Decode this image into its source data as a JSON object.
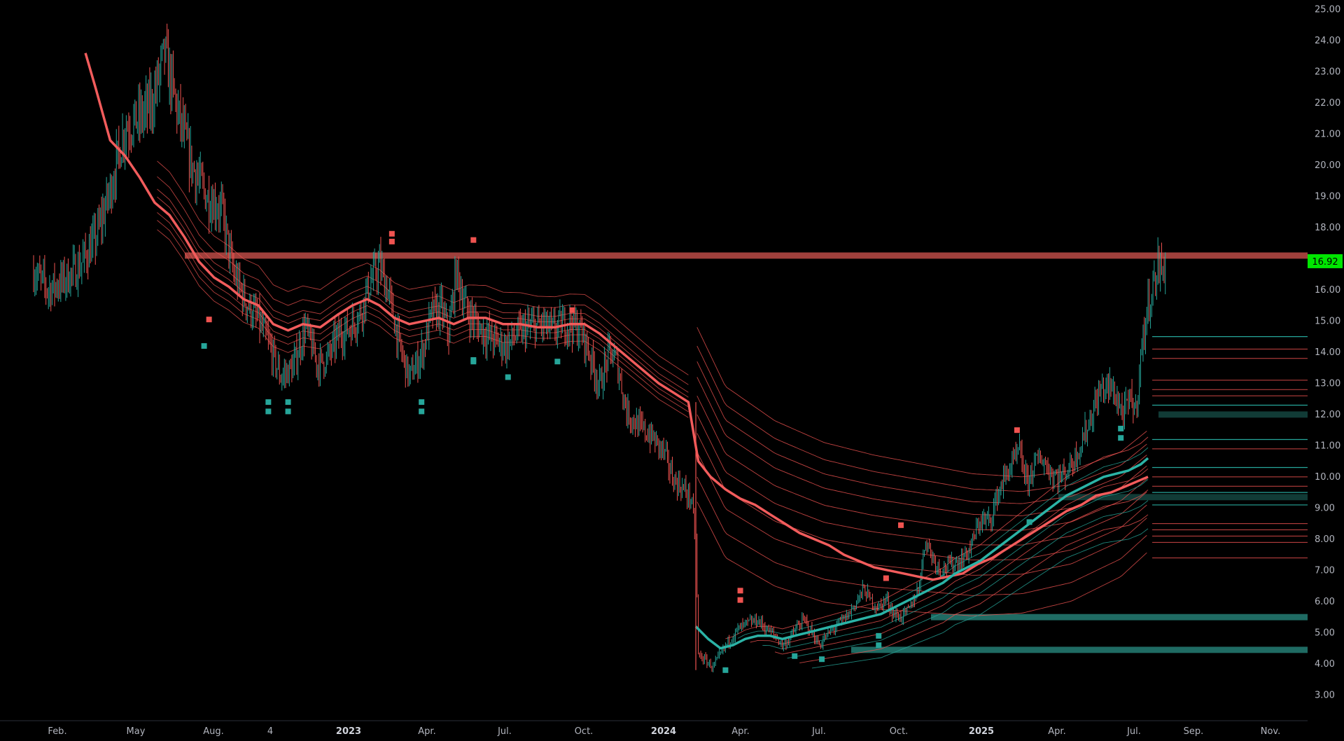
{
  "chart_data": {
    "type": "candlestick",
    "x_tick_labels": [
      "Feb.",
      "May",
      "Aug.",
      "4",
      "2023",
      "Apr.",
      "Jul.",
      "Oct.",
      "2024",
      "Apr.",
      "Jul.",
      "Oct.",
      "2025",
      "Apr.",
      "Jul.",
      "Sep.",
      "Nov."
    ],
    "x_tick_bold": [
      false,
      false,
      false,
      false,
      true,
      false,
      false,
      false,
      true,
      false,
      false,
      false,
      true,
      false,
      false,
      false,
      false
    ],
    "y_ticks": [
      3,
      4,
      5,
      6,
      7,
      8,
      9,
      10,
      11,
      12,
      13,
      14,
      15,
      16,
      17,
      18,
      19,
      20,
      21,
      22,
      23,
      24,
      25
    ],
    "y_tick_labels": [
      "3.00",
      "4.00",
      "5.00",
      "6.00",
      "7.00",
      "8.00",
      "9.00",
      "10.00",
      "11.00",
      "12.00",
      "13.00",
      "14.00",
      "15.00",
      "16.00",
      "17.00",
      "18.00",
      "19.00",
      "20.00",
      "21.00",
      "22.00",
      "23.00",
      "24.00",
      "25.00"
    ],
    "ylim": [
      2.2,
      25.3
    ],
    "last_price": 16.92,
    "last_price_label": "16.92",
    "colors": {
      "up": "#26a69a",
      "down": "#ef5350",
      "background": "#000000",
      "last_price_badge": "#00e600",
      "resistance_zone": "#a0403c",
      "support_zone": "#1f6b63"
    },
    "price_path": [
      [
        0,
        16.6
      ],
      [
        12,
        16.0
      ],
      [
        24,
        16.3
      ],
      [
        36,
        16.7
      ],
      [
        50,
        17.6
      ],
      [
        62,
        19.2
      ],
      [
        74,
        21.2
      ],
      [
        86,
        21.5
      ],
      [
        96,
        22.0
      ],
      [
        106,
        23.6
      ],
      [
        116,
        21.8
      ],
      [
        128,
        20.0
      ],
      [
        140,
        19.0
      ],
      [
        152,
        18.6
      ],
      [
        162,
        16.5
      ],
      [
        172,
        15.6
      ],
      [
        182,
        15.0
      ],
      [
        190,
        14.3
      ],
      [
        200,
        13.2
      ],
      [
        210,
        13.5
      ],
      [
        220,
        14.8
      ],
      [
        230,
        13.6
      ],
      [
        238,
        13.8
      ],
      [
        246,
        14.5
      ],
      [
        256,
        14.8
      ],
      [
        264,
        15.2
      ],
      [
        272,
        16.2
      ],
      [
        280,
        16.8
      ],
      [
        288,
        15.8
      ],
      [
        296,
        14.2
      ],
      [
        304,
        13.2
      ],
      [
        310,
        13.6
      ],
      [
        316,
        14.2
      ],
      [
        322,
        15.2
      ],
      [
        330,
        15.4
      ],
      [
        336,
        14.6
      ],
      [
        342,
        16.6
      ],
      [
        350,
        15.4
      ],
      [
        360,
        14.8
      ],
      [
        372,
        14.4
      ],
      [
        382,
        14.2
      ],
      [
        392,
        14.6
      ],
      [
        402,
        14.8
      ],
      [
        412,
        14.9
      ],
      [
        420,
        14.7
      ],
      [
        428,
        14.9
      ],
      [
        436,
        14.9
      ],
      [
        444,
        14.6
      ],
      [
        452,
        13.7
      ],
      [
        458,
        12.9
      ],
      [
        466,
        14.0
      ],
      [
        472,
        13.7
      ],
      [
        480,
        12.1
      ],
      [
        490,
        11.6
      ],
      [
        500,
        11.3
      ],
      [
        510,
        10.8
      ],
      [
        518,
        9.9
      ],
      [
        526,
        9.6
      ],
      [
        532,
        9.3
      ],
      [
        536,
        8.0
      ],
      [
        538,
        4.3
      ],
      [
        544,
        4.1
      ],
      [
        550,
        3.9
      ],
      [
        556,
        4.3
      ],
      [
        562,
        4.7
      ],
      [
        570,
        5.1
      ],
      [
        578,
        5.3
      ],
      [
        586,
        5.4
      ],
      [
        594,
        5.1
      ],
      [
        600,
        4.9
      ],
      [
        606,
        4.6
      ],
      [
        612,
        4.8
      ],
      [
        618,
        5.2
      ],
      [
        624,
        5.4
      ],
      [
        630,
        5.0
      ],
      [
        636,
        4.6
      ],
      [
        644,
        5.0
      ],
      [
        652,
        5.3
      ],
      [
        660,
        5.6
      ],
      [
        666,
        6.0
      ],
      [
        672,
        6.4
      ],
      [
        678,
        6.0
      ],
      [
        684,
        5.8
      ],
      [
        690,
        6.1
      ],
      [
        696,
        5.6
      ],
      [
        702,
        5.5
      ],
      [
        708,
        5.7
      ],
      [
        716,
        6.4
      ],
      [
        722,
        8.0
      ],
      [
        728,
        7.4
      ],
      [
        734,
        7.0
      ],
      [
        742,
        7.2
      ],
      [
        750,
        7.3
      ],
      [
        758,
        7.7
      ],
      [
        766,
        8.6
      ],
      [
        774,
        8.6
      ],
      [
        780,
        9.4
      ],
      [
        786,
        10.0
      ],
      [
        792,
        10.4
      ],
      [
        798,
        10.8
      ],
      [
        804,
        9.8
      ],
      [
        810,
        10.4
      ],
      [
        816,
        10.6
      ],
      [
        824,
        10.1
      ],
      [
        832,
        10.0
      ],
      [
        840,
        10.4
      ],
      [
        846,
        10.9
      ],
      [
        852,
        11.5
      ],
      [
        858,
        12.2
      ],
      [
        864,
        12.8
      ],
      [
        870,
        12.9
      ],
      [
        876,
        12.6
      ],
      [
        882,
        12.0
      ],
      [
        888,
        12.5
      ],
      [
        892,
        12.1
      ],
      [
        896,
        13.8
      ],
      [
        900,
        15.0
      ],
      [
        904,
        15.9
      ],
      [
        908,
        16.3
      ],
      [
        910,
        16.8
      ],
      [
        913,
        16.6
      ],
      [
        916,
        16.9
      ]
    ],
    "vwap_main": [
      [
        42,
        23.6
      ],
      [
        50,
        22.5
      ],
      [
        62,
        20.8
      ],
      [
        74,
        20.3
      ],
      [
        86,
        19.6
      ],
      [
        98,
        18.8
      ],
      [
        110,
        18.4
      ],
      [
        122,
        17.7
      ],
      [
        134,
        16.9
      ],
      [
        146,
        16.4
      ],
      [
        158,
        16.1
      ],
      [
        170,
        15.7
      ],
      [
        182,
        15.5
      ],
      [
        194,
        14.9
      ],
      [
        206,
        14.7
      ],
      [
        218,
        14.9
      ],
      [
        232,
        14.8
      ],
      [
        246,
        15.2
      ],
      [
        258,
        15.5
      ],
      [
        270,
        15.7
      ],
      [
        280,
        15.5
      ],
      [
        292,
        15.1
      ],
      [
        304,
        14.9
      ],
      [
        316,
        15.0
      ],
      [
        328,
        15.1
      ],
      [
        340,
        14.9
      ],
      [
        352,
        15.1
      ],
      [
        366,
        15.1
      ],
      [
        380,
        14.9
      ],
      [
        394,
        14.9
      ],
      [
        408,
        14.8
      ],
      [
        422,
        14.8
      ],
      [
        434,
        14.9
      ],
      [
        446,
        14.9
      ],
      [
        458,
        14.6
      ],
      [
        470,
        14.2
      ],
      [
        482,
        13.8
      ],
      [
        494,
        13.4
      ],
      [
        506,
        13.0
      ],
      [
        518,
        12.7
      ],
      [
        530,
        12.4
      ],
      [
        538,
        10.5
      ],
      [
        548,
        10.0
      ],
      [
        560,
        9.6
      ],
      [
        572,
        9.3
      ],
      [
        584,
        9.1
      ],
      [
        596,
        8.8
      ],
      [
        608,
        8.5
      ],
      [
        620,
        8.2
      ],
      [
        632,
        8.0
      ],
      [
        644,
        7.8
      ],
      [
        656,
        7.5
      ],
      [
        668,
        7.3
      ],
      [
        680,
        7.1
      ],
      [
        692,
        7.0
      ],
      [
        704,
        6.9
      ],
      [
        716,
        6.8
      ],
      [
        728,
        6.7
      ],
      [
        740,
        6.8
      ],
      [
        752,
        6.9
      ],
      [
        764,
        7.2
      ],
      [
        776,
        7.4
      ],
      [
        788,
        7.7
      ],
      [
        800,
        8.0
      ],
      [
        812,
        8.3
      ],
      [
        824,
        8.6
      ],
      [
        836,
        8.9
      ],
      [
        848,
        9.1
      ],
      [
        860,
        9.4
      ],
      [
        872,
        9.5
      ],
      [
        884,
        9.7
      ],
      [
        896,
        9.9
      ],
      [
        902,
        10.0
      ]
    ],
    "vwap_support_main": [
      [
        536,
        5.2
      ],
      [
        546,
        4.8
      ],
      [
        556,
        4.5
      ],
      [
        566,
        4.6
      ],
      [
        576,
        4.8
      ],
      [
        586,
        4.9
      ],
      [
        596,
        4.9
      ],
      [
        606,
        4.8
      ],
      [
        616,
        4.9
      ],
      [
        626,
        5.0
      ],
      [
        636,
        5.1
      ],
      [
        646,
        5.2
      ],
      [
        656,
        5.3
      ],
      [
        666,
        5.4
      ],
      [
        676,
        5.5
      ],
      [
        686,
        5.6
      ],
      [
        696,
        5.8
      ],
      [
        706,
        6.0
      ],
      [
        716,
        6.2
      ],
      [
        726,
        6.4
      ],
      [
        736,
        6.6
      ],
      [
        746,
        6.9
      ],
      [
        756,
        7.1
      ],
      [
        766,
        7.3
      ],
      [
        776,
        7.6
      ],
      [
        786,
        7.9
      ],
      [
        796,
        8.2
      ],
      [
        806,
        8.5
      ],
      [
        816,
        8.8
      ],
      [
        826,
        9.1
      ],
      [
        836,
        9.4
      ],
      [
        846,
        9.6
      ],
      [
        856,
        9.8
      ],
      [
        866,
        10.0
      ],
      [
        876,
        10.1
      ],
      [
        886,
        10.2
      ],
      [
        896,
        10.4
      ],
      [
        902,
        10.6
      ]
    ],
    "resistance_zone": [
      17.2,
      17.0
    ],
    "support_zones": [
      [
        5.6,
        5.4
      ],
      [
        4.55,
        4.35
      ],
      [
        12.1,
        11.9
      ],
      [
        9.45,
        9.25
      ]
    ],
    "horizontal_levels": {
      "teal": [
        14.5,
        12.3,
        11.2,
        10.3,
        9.5,
        9.1
      ],
      "red": [
        14.1,
        13.8,
        13.1,
        12.8,
        12.6,
        10.9,
        10.0,
        9.7,
        8.5,
        8.3,
        8.1,
        7.9,
        7.4
      ]
    },
    "signal_markers": {
      "sell": [
        [
          290,
          17.8
        ],
        [
          290,
          17.55
        ],
        [
          356,
          17.6
        ],
        [
          142,
          15.05
        ],
        [
          436,
          15.35
        ],
        [
          572,
          6.35
        ],
        [
          572,
          6.05
        ],
        [
          702,
          8.45
        ],
        [
          796,
          11.5
        ],
        [
          690,
          6.75
        ]
      ],
      "buy": [
        [
          190,
          12.4
        ],
        [
          190,
          12.1
        ],
        [
          206,
          12.1
        ],
        [
          206,
          12.4
        ],
        [
          314,
          12.4
        ],
        [
          314,
          12.1
        ],
        [
          384,
          13.2
        ],
        [
          424,
          13.7
        ],
        [
          138,
          14.2
        ],
        [
          560,
          3.8
        ],
        [
          616,
          4.25
        ],
        [
          638,
          4.15
        ],
        [
          356,
          13.7
        ],
        [
          356,
          13.75
        ],
        [
          684,
          4.9
        ],
        [
          684,
          4.6
        ],
        [
          806,
          8.55
        ],
        [
          880,
          11.55
        ],
        [
          880,
          11.25
        ]
      ]
    }
  }
}
